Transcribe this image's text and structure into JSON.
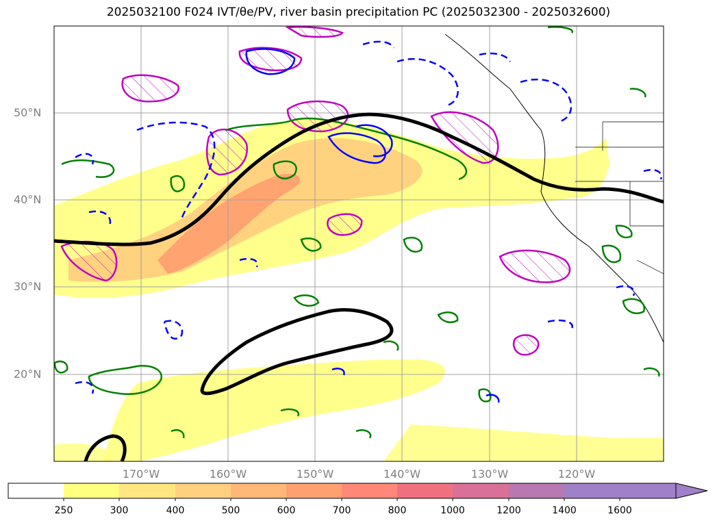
{
  "title": "2025032100 F024 IVT/θe/PV, river basin precipitation PC (2025032300 - 2025032600)",
  "map": {
    "projection": "equirectangular",
    "lon_range": [
      -180,
      -110
    ],
    "lat_range": [
      10,
      60
    ],
    "lat_labels": [
      "50°N",
      "40°N",
      "30°N",
      "20°N"
    ],
    "lon_labels": [
      "170°W",
      "160°W",
      "150°W",
      "140°W",
      "130°W",
      "120°W"
    ]
  },
  "colorbar": {
    "ticks": [
      "250",
      "300",
      "400",
      "500",
      "600",
      "700",
      "800",
      "1000",
      "1200",
      "1400",
      "1600"
    ],
    "colors": [
      "#ffffff",
      "#ffff80",
      "#ffe680",
      "#ffd080",
      "#ffb878",
      "#ffa070",
      "#ff8878",
      "#f07080",
      "#d87098",
      "#b878b0",
      "#a080c8"
    ]
  },
  "colors": {
    "ivt_low": "#ffff80",
    "ivt_mid": "#ffd080",
    "ivt_high": "#ffa070",
    "contour_black": "#000000",
    "contour_green": "#008000",
    "contour_blue": "#0000ff",
    "contour_magenta": "#c000c0",
    "grid": "#a0a0a0",
    "axis_label": "#7f7f7f"
  }
}
